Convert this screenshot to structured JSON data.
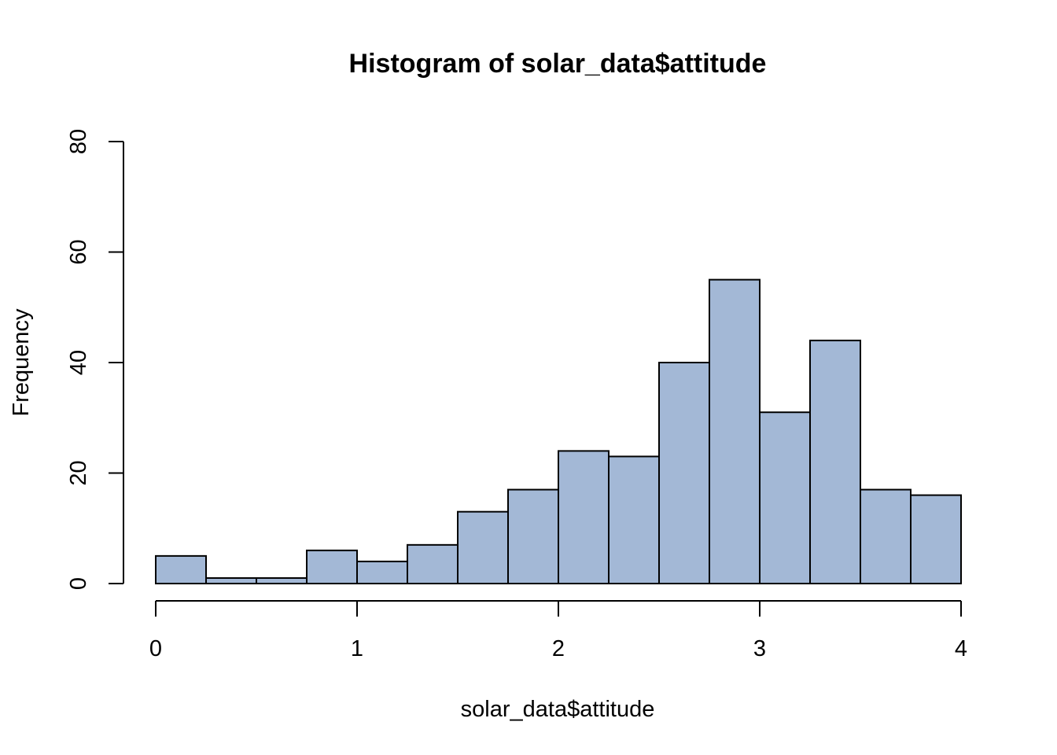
{
  "chart_data": {
    "type": "bar",
    "title": "Histogram of solar_data$attitude",
    "xlabel": "solar_data$attitude",
    "ylabel": "Frequency",
    "bar_color": "#a3b8d6",
    "bin_width": 0.25,
    "bins": [
      {
        "start": 0.0,
        "end": 0.25,
        "count": 5
      },
      {
        "start": 0.25,
        "end": 0.5,
        "count": 1
      },
      {
        "start": 0.5,
        "end": 0.75,
        "count": 1
      },
      {
        "start": 0.75,
        "end": 1.0,
        "count": 6
      },
      {
        "start": 1.0,
        "end": 1.25,
        "count": 4
      },
      {
        "start": 1.25,
        "end": 1.5,
        "count": 7
      },
      {
        "start": 1.5,
        "end": 1.75,
        "count": 13
      },
      {
        "start": 1.75,
        "end": 2.0,
        "count": 17
      },
      {
        "start": 2.0,
        "end": 2.25,
        "count": 24
      },
      {
        "start": 2.25,
        "end": 2.5,
        "count": 23
      },
      {
        "start": 2.5,
        "end": 2.75,
        "count": 40
      },
      {
        "start": 2.75,
        "end": 3.0,
        "count": 55
      },
      {
        "start": 3.0,
        "end": 3.25,
        "count": 31
      },
      {
        "start": 3.25,
        "end": 3.5,
        "count": 44
      },
      {
        "start": 3.5,
        "end": 3.75,
        "count": 17
      },
      {
        "start": 3.75,
        "end": 4.0,
        "count": 16
      }
    ],
    "xlim": [
      0,
      4
    ],
    "ylim": [
      0,
      80
    ],
    "x_ticks": [
      0,
      1,
      2,
      3,
      4
    ],
    "y_ticks": [
      0,
      20,
      40,
      60,
      80
    ],
    "grid": false
  }
}
